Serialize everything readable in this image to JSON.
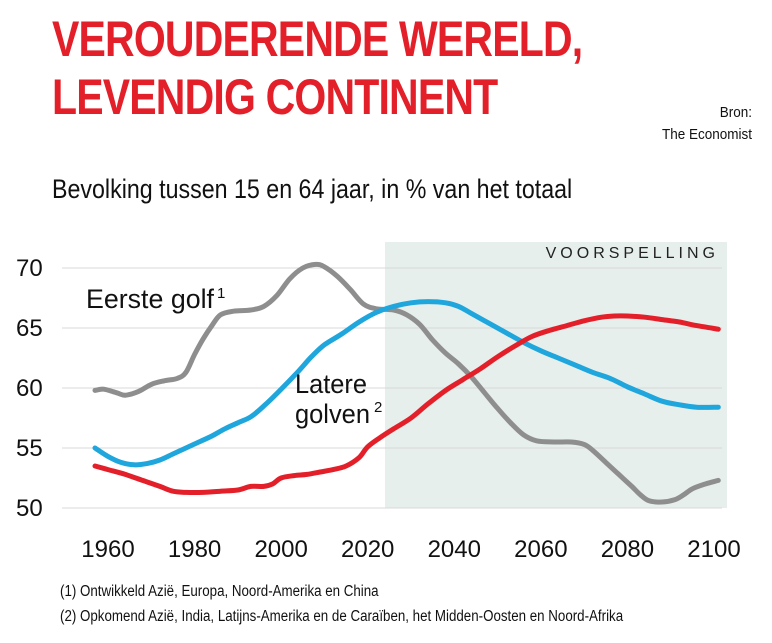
{
  "header": {
    "title_lines": [
      "VEROUDERENDE WERELD,",
      "LEVENDIG CONTINENT"
    ],
    "source_lines": [
      "Bron:",
      "The Economist"
    ],
    "subtitle": "Bevolking tussen 15 en 64 jaar, in % van het totaal"
  },
  "footnotes": [
    "(1) Ontwikkeld Azië, Europa, Noord-Amerika en China",
    "(2) Opkomend Azië, India, Latijns-Amerika en de Caraïben, het Midden-Oosten en Noord-Afrika"
  ],
  "chart_data": {
    "type": "line",
    "title": "VEROUDERENDE WERELD, LEVENDIG CONTINENT",
    "subtitle": "Bevolking tussen 15 en 64 jaar, in % van het totaal",
    "xlabel": "",
    "ylabel": "",
    "xlim": [
      1960,
      2100
    ],
    "ylim": [
      50,
      70
    ],
    "x_ticks": [
      "1960",
      "1980",
      "2000",
      "2020",
      "2040",
      "2060",
      "2080",
      "2100"
    ],
    "y_ticks": [
      "70",
      "65",
      "60",
      "55",
      "50"
    ],
    "grid": true,
    "forecast": {
      "label": "VOORSPELLING",
      "from": 2024,
      "to": 2103,
      "color": "#e6efec"
    },
    "colors": {
      "grid": "#d8d8d8"
    },
    "annotations": {
      "first_wave": "Eerste golf",
      "first_wave_mark": "1",
      "later_waves_line1": "Latere",
      "later_waves_line2": "golven",
      "later_waves_mark": "2"
    },
    "series": [
      {
        "key": "first_wave",
        "color": "#8e8e8e",
        "points": [
          [
            1957,
            59.8
          ],
          [
            1959,
            59.9
          ],
          [
            1962,
            59.6
          ],
          [
            1964,
            59.4
          ],
          [
            1967,
            59.7
          ],
          [
            1970,
            60.3
          ],
          [
            1973,
            60.6
          ],
          [
            1976,
            60.8
          ],
          [
            1978,
            61.3
          ],
          [
            1980,
            62.8
          ],
          [
            1982,
            64.1
          ],
          [
            1984,
            65.2
          ],
          [
            1986,
            66.1
          ],
          [
            1989,
            66.4
          ],
          [
            1993,
            66.5
          ],
          [
            1996,
            66.8
          ],
          [
            1999,
            67.7
          ],
          [
            2002,
            69.1
          ],
          [
            2005,
            70.0
          ],
          [
            2008,
            70.3
          ],
          [
            2010,
            70.1
          ],
          [
            2013,
            69.3
          ],
          [
            2016,
            68.2
          ],
          [
            2019,
            67.0
          ],
          [
            2022,
            66.6
          ],
          [
            2026,
            66.5
          ],
          [
            2029,
            66.1
          ],
          [
            2032,
            65.3
          ],
          [
            2035,
            64.0
          ],
          [
            2038,
            62.9
          ],
          [
            2041,
            62.0
          ],
          [
            2044,
            60.9
          ],
          [
            2047,
            59.6
          ],
          [
            2050,
            58.3
          ],
          [
            2053,
            57.1
          ],
          [
            2056,
            56.1
          ],
          [
            2059,
            55.6
          ],
          [
            2063,
            55.5
          ],
          [
            2067,
            55.5
          ],
          [
            2070,
            55.3
          ],
          [
            2072,
            54.8
          ],
          [
            2075,
            53.8
          ],
          [
            2078,
            52.8
          ],
          [
            2081,
            51.8
          ],
          [
            2083,
            51.1
          ],
          [
            2085,
            50.6
          ],
          [
            2088,
            50.5
          ],
          [
            2091,
            50.7
          ],
          [
            2093,
            51.1
          ],
          [
            2095,
            51.6
          ],
          [
            2098,
            52.0
          ],
          [
            2101,
            52.3
          ]
        ]
      },
      {
        "key": "later_waves",
        "color": "#1ea6dd",
        "points": [
          [
            1957,
            55.0
          ],
          [
            1960,
            54.3
          ],
          [
            1963,
            53.8
          ],
          [
            1966,
            53.6
          ],
          [
            1969,
            53.7
          ],
          [
            1972,
            54.0
          ],
          [
            1975,
            54.5
          ],
          [
            1978,
            55.0
          ],
          [
            1981,
            55.5
          ],
          [
            1984,
            56.0
          ],
          [
            1987,
            56.6
          ],
          [
            1990,
            57.1
          ],
          [
            1993,
            57.6
          ],
          [
            1996,
            58.5
          ],
          [
            2000,
            59.9
          ],
          [
            2004,
            61.4
          ],
          [
            2007,
            62.6
          ],
          [
            2010,
            63.6
          ],
          [
            2014,
            64.5
          ],
          [
            2018,
            65.5
          ],
          [
            2022,
            66.3
          ],
          [
            2026,
            66.8
          ],
          [
            2030,
            67.1
          ],
          [
            2034,
            67.2
          ],
          [
            2038,
            67.1
          ],
          [
            2041,
            66.8
          ],
          [
            2044,
            66.2
          ],
          [
            2048,
            65.4
          ],
          [
            2052,
            64.6
          ],
          [
            2056,
            63.8
          ],
          [
            2060,
            63.1
          ],
          [
            2064,
            62.5
          ],
          [
            2068,
            61.9
          ],
          [
            2072,
            61.3
          ],
          [
            2076,
            60.8
          ],
          [
            2080,
            60.1
          ],
          [
            2084,
            59.5
          ],
          [
            2088,
            58.9
          ],
          [
            2092,
            58.6
          ],
          [
            2096,
            58.4
          ],
          [
            2101,
            58.4
          ]
        ]
      },
      {
        "key": "africa",
        "color": "#e3202a",
        "points": [
          [
            1957,
            53.5
          ],
          [
            1960,
            53.2
          ],
          [
            1964,
            52.8
          ],
          [
            1968,
            52.3
          ],
          [
            1972,
            51.8
          ],
          [
            1975,
            51.4
          ],
          [
            1978,
            51.3
          ],
          [
            1982,
            51.3
          ],
          [
            1986,
            51.4
          ],
          [
            1990,
            51.5
          ],
          [
            1993,
            51.8
          ],
          [
            1996,
            51.8
          ],
          [
            1998,
            52.0
          ],
          [
            2000,
            52.5
          ],
          [
            2003,
            52.7
          ],
          [
            2006,
            52.8
          ],
          [
            2009,
            53.0
          ],
          [
            2012,
            53.2
          ],
          [
            2015,
            53.5
          ],
          [
            2018,
            54.2
          ],
          [
            2020,
            55.1
          ],
          [
            2023,
            55.9
          ],
          [
            2026,
            56.6
          ],
          [
            2030,
            57.5
          ],
          [
            2034,
            58.7
          ],
          [
            2038,
            59.8
          ],
          [
            2042,
            60.7
          ],
          [
            2046,
            61.6
          ],
          [
            2050,
            62.6
          ],
          [
            2054,
            63.5
          ],
          [
            2058,
            64.3
          ],
          [
            2062,
            64.8
          ],
          [
            2066,
            65.2
          ],
          [
            2070,
            65.6
          ],
          [
            2074,
            65.9
          ],
          [
            2077,
            66.0
          ],
          [
            2080,
            66.0
          ],
          [
            2084,
            65.9
          ],
          [
            2088,
            65.7
          ],
          [
            2092,
            65.5
          ],
          [
            2096,
            65.2
          ],
          [
            2101,
            64.9
          ]
        ]
      }
    ]
  }
}
